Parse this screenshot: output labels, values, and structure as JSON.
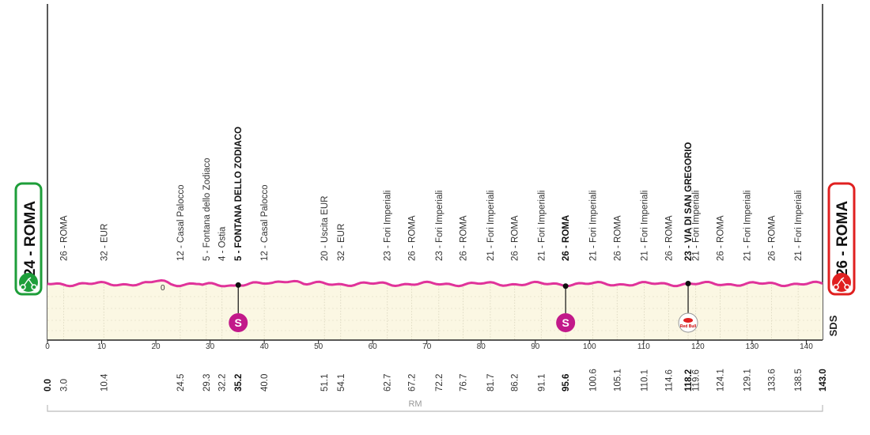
{
  "stage": {
    "start_label": "24 - ROMA",
    "finish_label": "26 - ROMA",
    "region": "RM",
    "organizer_logo": "SDS",
    "distance_total_km": 143.0
  },
  "colors": {
    "profile_line": "#e0339a",
    "profile_fill": "#fbf7e3",
    "start_badge": "#1e9e3a",
    "finish_badge": "#e02020",
    "sprint_marker": "#c2198a"
  },
  "axis": {
    "min": 0,
    "max": 143,
    "ticks": [
      "0",
      "10",
      "20",
      "30",
      "40",
      "50",
      "60",
      "70",
      "80",
      "90",
      "100",
      "110",
      "120",
      "130",
      "140"
    ]
  },
  "waypoints": [
    {
      "km": 0.0,
      "km_label": "0.0",
      "name": "",
      "bold": true
    },
    {
      "km": 3.0,
      "km_label": "3.0",
      "name": "26 - ROMA"
    },
    {
      "km": 10.4,
      "km_label": "10.4",
      "name": "32 - EUR"
    },
    {
      "km": 24.5,
      "km_label": "24.5",
      "name": "12 - Casal Palocco"
    },
    {
      "km": 29.3,
      "km_label": "29.3",
      "name": "5 - Fontana dello Zodiaco"
    },
    {
      "km": 32.2,
      "km_label": "32.2",
      "name": "4 - Ostia"
    },
    {
      "km": 35.2,
      "km_label": "35.2",
      "name": "5 - FONTANA DELLO ZODIACO",
      "bold": true
    },
    {
      "km": 40.0,
      "km_label": "40.0",
      "name": "12 - Casal Palocco"
    },
    {
      "km": 51.1,
      "km_label": "51.1",
      "name": "20 - Uscita EUR"
    },
    {
      "km": 54.1,
      "km_label": "54.1",
      "name": "32 - EUR"
    },
    {
      "km": 62.7,
      "km_label": "62.7",
      "name": "23 - Fori Imperiali"
    },
    {
      "km": 67.2,
      "km_label": "67.2",
      "name": "26 - ROMA"
    },
    {
      "km": 72.2,
      "km_label": "72.2",
      "name": "23 - Fori Imperiali"
    },
    {
      "km": 76.7,
      "km_label": "76.7",
      "name": "26 - ROMA"
    },
    {
      "km": 81.7,
      "km_label": "81.7",
      "name": "21 - Fori Imperiali"
    },
    {
      "km": 86.2,
      "km_label": "86.2",
      "name": "26 - ROMA"
    },
    {
      "km": 91.1,
      "km_label": "91.1",
      "name": "21 - Fori Imperiali"
    },
    {
      "km": 95.6,
      "km_label": "95.6",
      "name": "26 - ROMA",
      "bold": true
    },
    {
      "km": 100.6,
      "km_label": "100.6",
      "name": "21 - Fori Imperiali"
    },
    {
      "km": 105.1,
      "km_label": "105.1",
      "name": "26 - ROMA"
    },
    {
      "km": 110.1,
      "km_label": "110.1",
      "name": "21 - Fori Imperiali"
    },
    {
      "km": 114.6,
      "km_label": "114.6",
      "name": "26 - ROMA"
    },
    {
      "km": 118.2,
      "km_label": "118.2",
      "name": "23 - VIA DI SAN GREGORIO",
      "bold": true
    },
    {
      "km": 119.6,
      "km_label": "119.6",
      "name": "21 - Fori Imperiali"
    },
    {
      "km": 124.1,
      "km_label": "124.1",
      "name": "26 - ROMA"
    },
    {
      "km": 129.1,
      "km_label": "129.1",
      "name": "21 - Fori Imperiali"
    },
    {
      "km": 133.6,
      "km_label": "133.6",
      "name": "26 - ROMA"
    },
    {
      "km": 138.5,
      "km_label": "138.5",
      "name": "21 - Fori Imperiali"
    },
    {
      "km": 143.0,
      "km_label": "143.0",
      "name": "",
      "bold": true
    }
  ],
  "markers": [
    {
      "km": 35.2,
      "type": "sprint",
      "label": "S"
    },
    {
      "km": 95.6,
      "type": "sprint",
      "label": "S"
    },
    {
      "km": 118.2,
      "type": "km-bonus",
      "label": "Red Bull"
    }
  ],
  "profile_small_label": "0"
}
